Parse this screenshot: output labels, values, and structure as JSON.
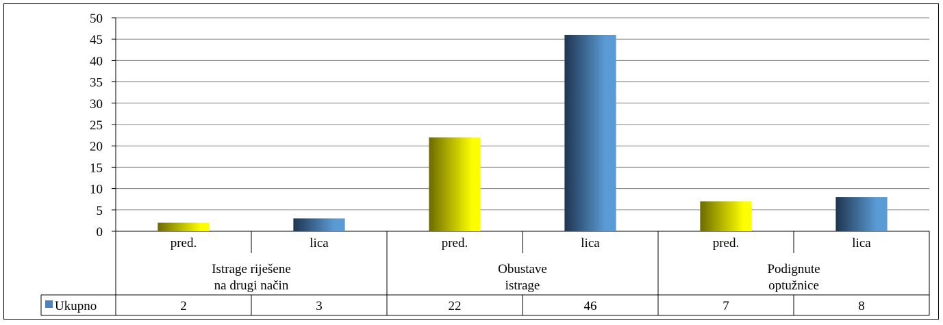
{
  "caption": "                                                              ",
  "chart_data": {
    "type": "bar",
    "title": "",
    "xlabel": "",
    "ylabel": "",
    "ylim": [
      0,
      50
    ],
    "yticks": [
      0,
      5,
      10,
      15,
      20,
      25,
      30,
      35,
      40,
      45,
      50
    ],
    "grid": true,
    "groups": [
      {
        "label_lines": [
          "Istrage riješene",
          "na drugi način"
        ]
      },
      {
        "label_lines": [
          "Obustave",
          "istrage"
        ]
      },
      {
        "label_lines": [
          "Podignute",
          "optužnice"
        ]
      }
    ],
    "categories": [
      "pred.",
      "lica",
      "pred.",
      "lica",
      "pred.",
      "lica"
    ],
    "category_group": [
      0,
      0,
      1,
      1,
      2,
      2
    ],
    "category_fill": [
      "yellow",
      "blue",
      "yellow",
      "blue",
      "yellow",
      "blue"
    ],
    "series": [
      {
        "name": "Ukupno",
        "values": [
          2,
          3,
          22,
          46,
          7,
          8
        ]
      }
    ],
    "data_table": {
      "row_label": "Ukupno",
      "values": [
        "2",
        "3",
        "22",
        "46",
        "7",
        "8"
      ]
    },
    "legend_placement": "data-table",
    "colors": {
      "yellow_dark": "#6b6b00",
      "yellow_light": "#ffff00",
      "blue_dark": "#1f3550",
      "blue_light": "#5b9bd5",
      "legend_key": "#4f81bd",
      "gridline": "#808080"
    }
  }
}
